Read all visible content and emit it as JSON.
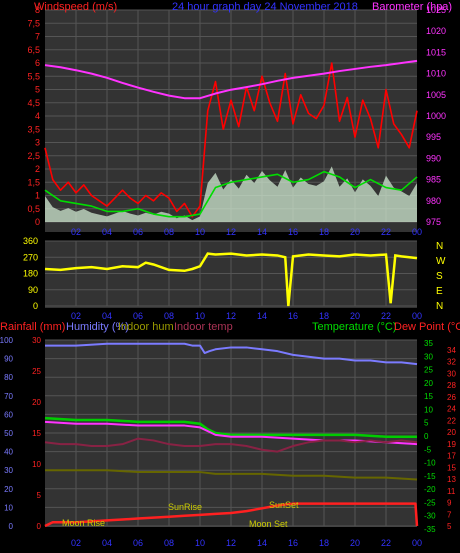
{
  "window": {
    "title": "24 hour graph day  24 November 2018"
  },
  "colors": {
    "background": "#000000",
    "plot_bg": "#333333",
    "grid": "#555555",
    "wind_speed": "#ff0000",
    "wind_avg": "#00dd00",
    "wind_gust_fill": "#cfe8d0",
    "barometer": "#ff33ff",
    "wind_dir": "#ffff00",
    "rainfall": "#ff2020",
    "humidity": "#7b7bff",
    "indoor_hum": "#666600",
    "indoor_temp": "#882244",
    "temperature": "#00cc00",
    "dew_point": "#ff2020"
  },
  "chart_data": [
    {
      "type": "line",
      "title": "24 hour graph day  24 November 2018",
      "legend_left": "Windspeed (m/s)",
      "legend_right": "Barometer (hpa)",
      "x_ticks": [
        "02",
        "04",
        "06",
        "08",
        "10",
        "12",
        "14",
        "16",
        "18",
        "20",
        "22",
        "00"
      ],
      "y_left_ticks": [
        "0",
        "0,5",
        "1",
        "1,5",
        "2",
        "2,5",
        "3",
        "3,5",
        "4",
        "4,5",
        "5",
        "5,5",
        "6",
        "6,5",
        "7",
        "7,5",
        "8"
      ],
      "y_right_ticks": [
        "975",
        "980",
        "985",
        "990",
        "995",
        "1000",
        "1005",
        "1010",
        "1015",
        "1020",
        "1025"
      ],
      "ylim_left": [
        0,
        8
      ],
      "ylim_right": [
        975,
        1025
      ],
      "xlim": [
        0,
        24
      ],
      "series": [
        {
          "name": "Windspeed (m/s)",
          "axis": "left",
          "x": [
            0,
            0.5,
            1,
            1.5,
            2,
            2.5,
            3,
            3.5,
            4,
            4.5,
            5,
            5.5,
            6,
            6.5,
            7,
            7.5,
            8,
            8.5,
            9,
            9.5,
            10,
            10.5,
            11,
            11.5,
            12,
            12.5,
            13,
            13.5,
            14,
            14.5,
            15,
            15.5,
            16,
            16.5,
            17,
            17.5,
            18,
            18.5,
            19,
            19.5,
            20,
            20.5,
            21,
            21.5,
            22,
            22.5,
            23,
            23.5,
            24
          ],
          "y": [
            2.8,
            1.6,
            1.2,
            1.5,
            1.1,
            1.4,
            1.0,
            0.8,
            0.6,
            0.9,
            1.2,
            0.9,
            0.7,
            1.0,
            0.8,
            1.1,
            0.9,
            0.4,
            0.7,
            0.2,
            0.6,
            4.2,
            5.3,
            3.5,
            4.6,
            3.6,
            5.1,
            4.2,
            5.5,
            4.5,
            3.8,
            5.6,
            3.7,
            4.8,
            4.1,
            3.9,
            4.4,
            6.0,
            3.8,
            4.7,
            3.2,
            4.6,
            3.9,
            2.8,
            5.0,
            3.7,
            3.3,
            2.8,
            4.2
          ]
        },
        {
          "name": "Wind average",
          "axis": "left",
          "x": [
            0,
            1,
            2,
            3,
            4,
            5,
            6,
            7,
            8,
            9,
            10,
            11,
            12,
            13,
            14,
            15,
            16,
            17,
            18,
            19,
            20,
            21,
            22,
            23,
            24
          ],
          "y": [
            1.2,
            0.8,
            0.7,
            0.6,
            0.4,
            0.4,
            0.5,
            0.3,
            0.2,
            0.2,
            0.3,
            1.3,
            1.5,
            1.6,
            1.7,
            1.8,
            1.5,
            1.6,
            1.9,
            1.7,
            1.3,
            1.6,
            1.3,
            1.2,
            1.7
          ]
        },
        {
          "name": "Barometer (hpa)",
          "axis": "right",
          "x": [
            0,
            1,
            2,
            3,
            4,
            5,
            6,
            7,
            8,
            9,
            10,
            11,
            12,
            13,
            14,
            15,
            16,
            17,
            18,
            19,
            20,
            21,
            22,
            23,
            24
          ],
          "y": [
            1012.0,
            1011.5,
            1010.8,
            1010.0,
            1009.0,
            1007.8,
            1006.7,
            1005.7,
            1004.8,
            1004.2,
            1004.2,
            1005.3,
            1006.2,
            1006.8,
            1007.5,
            1008.3,
            1009.0,
            1009.5,
            1010.0,
            1010.6,
            1011.1,
            1011.6,
            1012.0,
            1012.5,
            1013.0
          ]
        }
      ]
    },
    {
      "type": "scatter",
      "x_ticks": [
        "02",
        "04",
        "06",
        "08",
        "10",
        "12",
        "14",
        "16",
        "18",
        "20",
        "22",
        "00"
      ],
      "y_left_ticks": [
        "0",
        "90",
        "180",
        "270",
        "360"
      ],
      "y_right_labels": [
        "N",
        "W",
        "S",
        "E",
        "N"
      ],
      "ylim": [
        0,
        360
      ],
      "xlim": [
        0,
        24
      ],
      "series": [
        {
          "name": "Wind direction",
          "x": [
            0,
            1,
            2,
            3,
            4,
            5,
            6,
            6.5,
            7,
            8,
            9,
            9.5,
            10,
            10.5,
            11,
            12,
            13,
            14,
            15,
            15.5,
            15.7,
            16,
            17,
            18,
            19,
            20,
            21,
            22,
            22.3,
            22.6,
            23,
            24
          ],
          "y": [
            205,
            200,
            210,
            215,
            205,
            220,
            215,
            240,
            230,
            200,
            195,
            205,
            220,
            290,
            285,
            290,
            280,
            285,
            280,
            270,
            0,
            275,
            285,
            280,
            275,
            285,
            280,
            285,
            15,
            280,
            275,
            265
          ]
        }
      ]
    },
    {
      "type": "line",
      "legend_left": [
        "Rainfall (mm)",
        "Humidity (%)",
        "Indoor hum",
        "Indoor temp"
      ],
      "legend_right": [
        "Temperature (°C)",
        "Dew Point (°C)"
      ],
      "x_ticks": [
        "02",
        "04",
        "06",
        "08",
        "10",
        "12",
        "14",
        "16",
        "18",
        "20",
        "22",
        "00"
      ],
      "y_rain_ticks": [
        "0",
        "5",
        "10",
        "15",
        "20",
        "25",
        "30"
      ],
      "y_hum_ticks": [
        "0",
        "10",
        "20",
        "30",
        "40",
        "50",
        "60",
        "70",
        "80",
        "90",
        "100"
      ],
      "y_temp_ticks": [
        "35",
        "30",
        "25",
        "20",
        "15",
        "10",
        "5",
        "0",
        "-5",
        "-10",
        "-15",
        "-20",
        "-25",
        "-30",
        "-35"
      ],
      "y_temp2_ticks": [
        "34",
        "32",
        "30",
        "28",
        "26",
        "24",
        "22",
        "20",
        "19",
        "17",
        "15",
        "13",
        "11",
        "9",
        "7",
        "5"
      ],
      "annotations": [
        "SunRise",
        "SunSet",
        "Moon Rise",
        "Moon Set"
      ],
      "xlim": [
        0,
        24
      ],
      "ylim_hum": [
        0,
        100
      ],
      "series": [
        {
          "name": "Humidity (%)",
          "axis": "humidity",
          "x": [
            0,
            2,
            4,
            6,
            8,
            9,
            9.5,
            10,
            10.3,
            10.6,
            11,
            12,
            13,
            14,
            15,
            16,
            17,
            18,
            19,
            20,
            21,
            22,
            23,
            24
          ],
          "y": [
            97,
            97,
            98,
            98,
            98,
            98,
            97,
            97,
            93,
            94,
            95,
            96,
            96,
            95,
            94,
            92,
            91,
            90,
            90,
            89,
            89,
            88,
            88,
            87
          ]
        },
        {
          "name": "Temperature (°C)",
          "axis": "humidity",
          "x": [
            0,
            2,
            4,
            6,
            8,
            9,
            10,
            10.5,
            11,
            12,
            14,
            16,
            18,
            20,
            22,
            24
          ],
          "y": [
            58,
            57,
            57,
            56,
            56,
            56,
            55,
            52,
            50,
            49,
            49,
            49,
            49,
            49,
            48,
            48
          ]
        },
        {
          "name": "Dew Point (°C)",
          "axis": "humidity",
          "x": [
            0,
            2,
            4,
            6,
            8,
            9,
            10,
            10.5,
            11,
            12,
            14,
            16,
            18,
            20,
            22,
            24
          ],
          "y": [
            56,
            55,
            55,
            54,
            54,
            54,
            53,
            51,
            49,
            48,
            48,
            47,
            46,
            46,
            45,
            44
          ]
        },
        {
          "name": "Indoor temp",
          "axis": "humidity",
          "x": [
            0,
            1,
            2,
            3,
            4,
            5,
            6,
            7,
            8,
            9,
            10,
            11,
            12,
            13,
            14,
            15,
            16,
            17,
            18,
            19,
            20,
            21,
            22,
            23,
            24
          ],
          "y": [
            45,
            44,
            44,
            43,
            43,
            44,
            47,
            46,
            44,
            43,
            43,
            44,
            44,
            43,
            41,
            40,
            43,
            45,
            46,
            46,
            45,
            46,
            45,
            46,
            45
          ]
        },
        {
          "name": "Indoor hum",
          "axis": "humidity",
          "x": [
            0,
            2,
            4,
            6,
            8,
            10,
            11,
            12,
            14,
            16,
            18,
            20,
            22,
            24
          ],
          "y": [
            30,
            30,
            30,
            29,
            29,
            29,
            28,
            28,
            28,
            27,
            27,
            26,
            26,
            25
          ]
        },
        {
          "name": "Rainfall (mm)",
          "axis": "humidity",
          "x": [
            0,
            0.5,
            1,
            2,
            3,
            4,
            5,
            6,
            7,
            8,
            9,
            10,
            11,
            12,
            13,
            14,
            15,
            16,
            17,
            18,
            20,
            22,
            23.9,
            24
          ],
          "y": [
            0,
            2,
            2,
            2,
            2.5,
            3,
            3.5,
            4,
            4.5,
            5,
            5.5,
            6,
            6.5,
            7,
            8,
            9.5,
            11,
            12,
            12,
            12,
            12,
            12,
            12,
            0
          ]
        }
      ]
    }
  ]
}
